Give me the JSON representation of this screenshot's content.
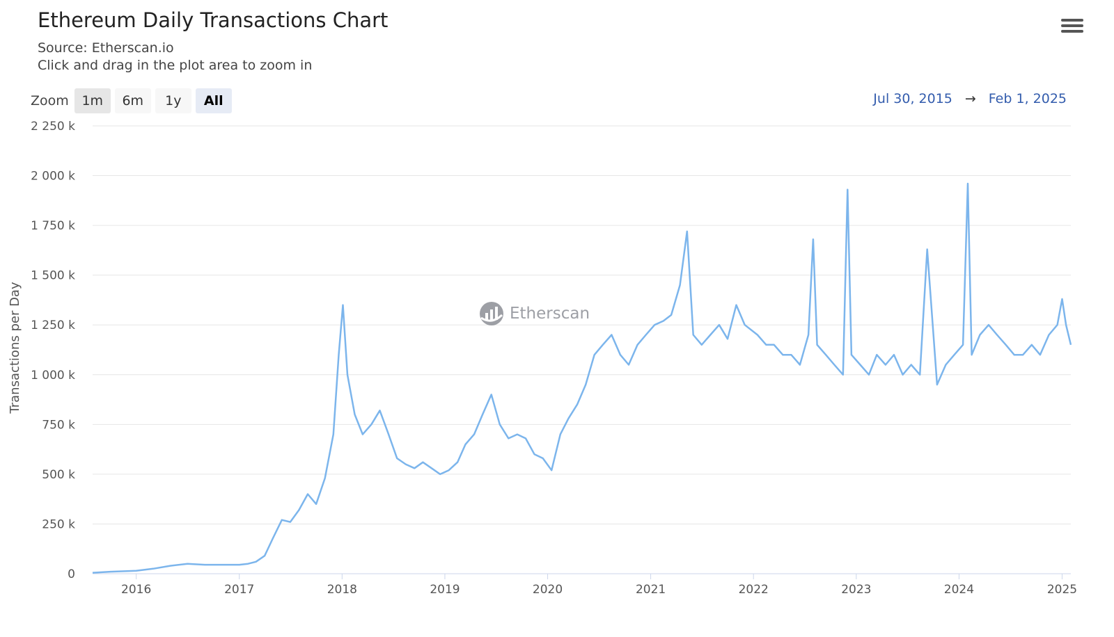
{
  "header": {
    "title": "Ethereum Daily Transactions Chart",
    "source": "Source: Etherscan.io",
    "hint": "Click and drag in the plot area to zoom in"
  },
  "zoom": {
    "label": "Zoom",
    "buttons": [
      "1m",
      "6m",
      "1y",
      "All"
    ],
    "active": "All"
  },
  "range": {
    "from": "Jul 30, 2015",
    "arrow": "→",
    "to": "Feb 1, 2025"
  },
  "watermark": {
    "text": "Etherscan"
  },
  "colors": {
    "series": "#7cb5ec",
    "grid": "#e6e6e6",
    "range_text": "#335cad"
  },
  "chart_data": {
    "type": "line",
    "title": "Ethereum Daily Transactions Chart",
    "subtitle": "Source: Etherscan.io",
    "xlabel": "",
    "ylabel": "Transactions per Day",
    "xlim": [
      "2015-07-30",
      "2025-02-01"
    ],
    "ylim": [
      0,
      2250000
    ],
    "y_ticks": [
      0,
      250000,
      500000,
      750000,
      1000000,
      1250000,
      1500000,
      1750000,
      2000000,
      2250000
    ],
    "y_tick_labels": [
      "0",
      "250 k",
      "500 k",
      "750 k",
      "1 000 k",
      "1 250 k",
      "1 500 k",
      "1 750 k",
      "2 000 k",
      "2 250 k"
    ],
    "x_ticks": [
      "2016-01-01",
      "2017-01-01",
      "2018-01-01",
      "2019-01-01",
      "2020-01-01",
      "2021-01-01",
      "2022-01-01",
      "2023-01-01",
      "2024-01-01",
      "2025-01-01"
    ],
    "x_tick_labels": [
      "2016",
      "2017",
      "2018",
      "2019",
      "2020",
      "2021",
      "2022",
      "2023",
      "2024",
      "2025"
    ],
    "grid": true,
    "legend": "none",
    "series": [
      {
        "x": [
          "2015-07-30",
          "2015-10-01",
          "2016-01-01",
          "2016-03-01",
          "2016-05-01",
          "2016-07-01",
          "2016-09-01",
          "2016-11-01",
          "2017-01-01",
          "2017-02-01",
          "2017-03-01",
          "2017-04-01",
          "2017-05-01",
          "2017-06-01",
          "2017-07-01",
          "2017-08-01",
          "2017-09-01",
          "2017-10-01",
          "2017-11-01",
          "2017-12-01",
          "2017-12-20",
          "2018-01-04",
          "2018-01-20",
          "2018-02-15",
          "2018-03-15",
          "2018-04-15",
          "2018-05-15",
          "2018-06-15",
          "2018-07-15",
          "2018-08-15",
          "2018-09-15",
          "2018-10-15",
          "2018-11-15",
          "2018-12-15",
          "2019-01-15",
          "2019-02-15",
          "2019-03-15",
          "2019-04-15",
          "2019-05-15",
          "2019-06-15",
          "2019-07-15",
          "2019-08-15",
          "2019-09-15",
          "2019-10-15",
          "2019-11-15",
          "2019-12-15",
          "2020-01-15",
          "2020-02-15",
          "2020-03-15",
          "2020-04-15",
          "2020-05-15",
          "2020-06-15",
          "2020-07-15",
          "2020-08-15",
          "2020-09-15",
          "2020-10-15",
          "2020-11-15",
          "2020-12-15",
          "2021-01-15",
          "2021-02-15",
          "2021-03-15",
          "2021-04-15",
          "2021-05-10",
          "2021-06-01",
          "2021-07-01",
          "2021-08-01",
          "2021-09-01",
          "2021-10-01",
          "2021-11-01",
          "2021-12-01",
          "2022-01-15",
          "2022-02-15",
          "2022-03-15",
          "2022-04-15",
          "2022-05-15",
          "2022-06-15",
          "2022-07-15",
          "2022-08-01",
          "2022-08-15",
          "2022-09-15",
          "2022-10-15",
          "2022-11-15",
          "2022-12-01",
          "2022-12-15",
          "2023-01-15",
          "2023-02-15",
          "2023-03-15",
          "2023-04-15",
          "2023-05-15",
          "2023-06-15",
          "2023-07-15",
          "2023-08-15",
          "2023-09-10",
          "2023-10-15",
          "2023-11-15",
          "2023-12-15",
          "2024-01-15",
          "2024-02-01",
          "2024-02-15",
          "2024-03-15",
          "2024-04-15",
          "2024-05-15",
          "2024-06-15",
          "2024-07-15",
          "2024-08-15",
          "2024-09-15",
          "2024-10-15",
          "2024-11-15",
          "2024-12-15",
          "2025-01-01",
          "2025-01-15",
          "2025-02-01"
        ],
        "y": [
          5000,
          10000,
          15000,
          25000,
          40000,
          50000,
          45000,
          45000,
          45000,
          50000,
          60000,
          90000,
          180000,
          270000,
          260000,
          320000,
          400000,
          350000,
          480000,
          700000,
          1100000,
          1350000,
          1000000,
          800000,
          700000,
          750000,
          820000,
          700000,
          580000,
          550000,
          530000,
          560000,
          530000,
          500000,
          520000,
          560000,
          650000,
          700000,
          800000,
          900000,
          750000,
          680000,
          700000,
          680000,
          600000,
          580000,
          520000,
          700000,
          780000,
          850000,
          950000,
          1100000,
          1150000,
          1200000,
          1100000,
          1050000,
          1150000,
          1200000,
          1250000,
          1270000,
          1300000,
          1450000,
          1720000,
          1200000,
          1150000,
          1200000,
          1250000,
          1180000,
          1350000,
          1250000,
          1200000,
          1150000,
          1150000,
          1100000,
          1100000,
          1050000,
          1200000,
          1680000,
          1150000,
          1100000,
          1050000,
          1000000,
          1930000,
          1100000,
          1050000,
          1000000,
          1100000,
          1050000,
          1100000,
          1000000,
          1050000,
          1000000,
          1630000,
          950000,
          1050000,
          1100000,
          1150000,
          1960000,
          1100000,
          1200000,
          1250000,
          1200000,
          1150000,
          1100000,
          1100000,
          1150000,
          1100000,
          1200000,
          1250000,
          1380000,
          1250000,
          1150000
        ]
      }
    ]
  }
}
